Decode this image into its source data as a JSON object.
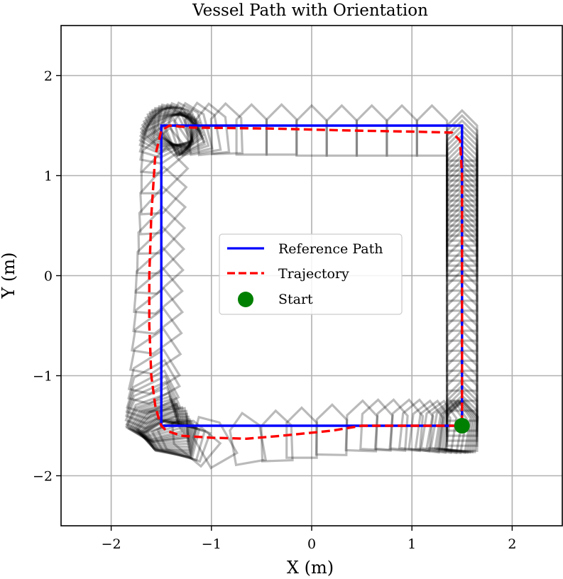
{
  "chart_data": {
    "type": "line",
    "title": "Vessel Path with Orientation",
    "xlabel": "X (m)",
    "ylabel": "Y (m)",
    "xlim": [
      -2.5,
      2.5
    ],
    "ylim": [
      -2.5,
      2.5
    ],
    "xticks": [
      -2,
      -1,
      0,
      1,
      2
    ],
    "yticks": [
      -2,
      -1,
      0,
      1,
      2
    ],
    "xtick_labels": [
      "−2",
      "−1",
      "0",
      "1",
      "2"
    ],
    "ytick_labels": [
      "−2",
      "−1",
      "0",
      "1",
      "2"
    ],
    "grid": true,
    "legend_position": "center",
    "colors": {
      "reference": "#0000ff",
      "trajectory": "#ff0000",
      "start": "#008000",
      "vessel": "#000000",
      "grid": "#b0b0b0"
    },
    "series": [
      {
        "name": "Reference Path",
        "style": "solid",
        "x": [
          1.5,
          1.5,
          -1.5,
          -1.5,
          1.5
        ],
        "y": [
          -1.5,
          1.5,
          1.5,
          -1.5,
          -1.5
        ]
      },
      {
        "name": "Trajectory",
        "style": "dashed",
        "x": [
          1.5,
          1.5,
          1.5,
          1.48,
          1.4,
          1.0,
          0.4,
          -0.4,
          -1.2,
          -1.42,
          -1.5,
          -1.56,
          -1.6,
          -1.62,
          -1.62,
          -1.6,
          -1.56,
          -1.52,
          -1.5,
          -1.45,
          -1.3,
          -1.0,
          -0.65,
          -0.3,
          0.2,
          0.5,
          0.9,
          1.2,
          1.45,
          1.5
        ],
        "y": [
          -1.48,
          0.0,
          1.0,
          1.35,
          1.43,
          1.44,
          1.45,
          1.47,
          1.48,
          1.5,
          1.45,
          1.2,
          0.6,
          0.0,
          -0.5,
          -1.0,
          -1.3,
          -1.45,
          -1.5,
          -1.55,
          -1.6,
          -1.62,
          -1.63,
          -1.6,
          -1.55,
          -1.5,
          -1.5,
          -1.5,
          -1.5,
          -1.5
        ]
      },
      {
        "name": "Start",
        "type": "scatter",
        "x": [
          1.5
        ],
        "y": [
          -1.5
        ]
      }
    ],
    "vessel_poses": {
      "x": [
        1.5,
        1.5,
        1.5,
        1.5,
        1.5,
        1.5,
        1.5,
        1.5,
        1.5,
        1.5,
        1.5,
        1.5,
        1.5,
        1.5,
        1.5,
        1.5,
        1.5,
        1.5,
        1.5,
        1.5,
        1.5,
        1.5,
        1.5,
        1.5,
        1.5,
        1.5,
        1.5,
        1.5,
        1.5,
        1.5,
        1.5,
        1.5,
        1.5,
        1.5,
        1.5,
        1.5,
        1.5,
        1.5,
        1.5,
        1.5,
        1.5,
        1.5,
        1.5,
        1.5,
        1.2,
        0.9,
        0.6,
        0.3,
        0.0,
        -0.3,
        -0.6,
        -0.85,
        -1.0,
        -1.1,
        -1.2,
        -1.25,
        -1.3,
        -1.32,
        -1.35,
        -1.36,
        -1.38,
        -1.39,
        -1.4,
        -1.41,
        -1.42,
        -1.43,
        -1.44,
        -1.45,
        -1.45,
        -1.46,
        -1.47,
        -1.48,
        -1.49,
        -1.5,
        -1.51,
        -1.52,
        -1.53,
        -1.54,
        -1.55,
        -1.56,
        -1.57,
        -1.58,
        -1.58,
        -1.59,
        -1.6,
        -1.61,
        -1.61,
        -1.62,
        -1.62,
        -1.62,
        -1.62,
        -1.61,
        -1.61,
        -1.6,
        -1.58,
        -1.56,
        -1.54,
        -1.52,
        -1.5,
        -1.49,
        -1.49,
        -1.48,
        -1.47,
        -1.46,
        -1.45,
        -1.44,
        -1.43,
        -1.42,
        -1.4,
        -1.35,
        -1.3,
        -1.2,
        -1.0,
        -0.65,
        -0.35,
        -0.1,
        0.2,
        0.5,
        0.65,
        0.8,
        0.95,
        1.05,
        1.15,
        1.22,
        1.28,
        1.34,
        1.38,
        1.42,
        1.44,
        1.46,
        1.48,
        1.5
      ],
      "y": [
        1.4,
        1.35,
        1.3,
        1.25,
        1.2,
        1.15,
        1.1,
        1.05,
        1.0,
        0.95,
        0.9,
        0.85,
        0.8,
        0.75,
        0.7,
        0.65,
        0.6,
        0.55,
        0.5,
        0.45,
        0.4,
        0.35,
        0.3,
        0.25,
        0.2,
        0.1,
        0.0,
        -0.1,
        -0.2,
        -0.3,
        -0.4,
        -0.5,
        -0.6,
        -0.7,
        -0.8,
        -0.9,
        -1.0,
        -1.1,
        -1.2,
        -1.3,
        -1.35,
        -1.4,
        -1.45,
        -1.5,
        1.45,
        1.45,
        1.45,
        1.45,
        1.45,
        1.46,
        1.46,
        1.47,
        1.47,
        1.48,
        1.48,
        1.49,
        1.49,
        1.49,
        1.5,
        1.5,
        1.5,
        1.5,
        1.5,
        1.5,
        1.49,
        1.48,
        1.47,
        1.46,
        1.45,
        1.44,
        1.42,
        1.4,
        1.36,
        1.3,
        1.2,
        1.0,
        0.8,
        0.6,
        0.4,
        0.2,
        0.0,
        -0.2,
        -0.4,
        -0.6,
        -0.8,
        -1.0,
        -1.1,
        -1.2,
        -1.25,
        -1.3,
        -1.35,
        -1.4,
        -1.43,
        -1.45,
        -1.47,
        -1.48,
        -1.49,
        -1.5,
        -1.5,
        -1.52,
        -1.54,
        -1.56,
        -1.58,
        -1.59,
        -1.6,
        -1.61,
        -1.62,
        -1.62,
        -1.62,
        -1.63,
        -1.63,
        -1.63,
        -1.63,
        -1.62,
        -1.6,
        -1.57,
        -1.54,
        -1.5,
        -1.49,
        -1.49,
        -1.49,
        -1.49,
        -1.5,
        -1.5,
        -1.5,
        -1.5,
        -1.5,
        -1.5,
        -1.5,
        -1.5,
        -1.5,
        -1.5
      ],
      "heading_deg": [
        90,
        90,
        90,
        90,
        90,
        90,
        90,
        90,
        90,
        90,
        90,
        90,
        90,
        90,
        90,
        90,
        90,
        90,
        90,
        90,
        90,
        90,
        90,
        90,
        90,
        90,
        90,
        90,
        90,
        90,
        90,
        90,
        90,
        90,
        90,
        90,
        90,
        90,
        90,
        90,
        90,
        90,
        90,
        90,
        90,
        90,
        90,
        90,
        90,
        90,
        90,
        92,
        96,
        100,
        104,
        108,
        112,
        118,
        124,
        130,
        136,
        142,
        148,
        154,
        160,
        166,
        172,
        178,
        184,
        190,
        196,
        202,
        208,
        214,
        220,
        225,
        228,
        228,
        226,
        224,
        222,
        220,
        218,
        216,
        214,
        212,
        210,
        208,
        206,
        204,
        202,
        200,
        198,
        196,
        194,
        192,
        190,
        188,
        186,
        184,
        182,
        180,
        178,
        176,
        174,
        172,
        170,
        168,
        166,
        164,
        160,
        140,
        120,
        100,
        92,
        90,
        89,
        88,
        87,
        86,
        85,
        84,
        83,
        82,
        81,
        80,
        80,
        81,
        82,
        83,
        84,
        85,
        87,
        89
      ]
    },
    "vessel_geometry": {
      "length_m": 0.5,
      "width_m": 0.3,
      "bow_length_m": 0.15
    }
  }
}
